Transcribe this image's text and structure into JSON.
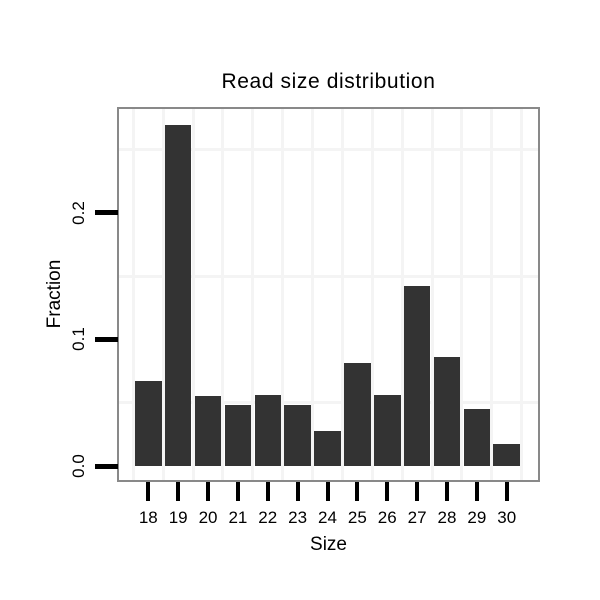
{
  "chart_data": {
    "type": "bar",
    "title": "Read size distribution",
    "xlabel": "Size",
    "ylabel": "Fraction",
    "categories": [
      "18",
      "19",
      "20",
      "21",
      "22",
      "23",
      "24",
      "25",
      "26",
      "27",
      "28",
      "29",
      "30"
    ],
    "values": [
      0.067,
      0.269,
      0.055,
      0.048,
      0.056,
      0.048,
      0.028,
      0.081,
      0.056,
      0.142,
      0.086,
      0.045,
      0.017
    ],
    "y_tick_labels": [
      "0.0",
      "0.1",
      "0.2"
    ],
    "y_tick_values": [
      0.0,
      0.1,
      0.2
    ],
    "minor_gridlines_y": [
      0.05,
      0.15,
      0.25
    ],
    "ylim": [
      -0.011,
      0.282
    ],
    "grid": "minor horizontal lines + vertical category-boundary lines, very light gray",
    "legend": "none",
    "colors": {
      "bar": "#333333",
      "panel_border": "#898989",
      "grid": "#f4f4f4",
      "tick": "#000000",
      "text": "#000000",
      "background": "#ffffff"
    }
  }
}
